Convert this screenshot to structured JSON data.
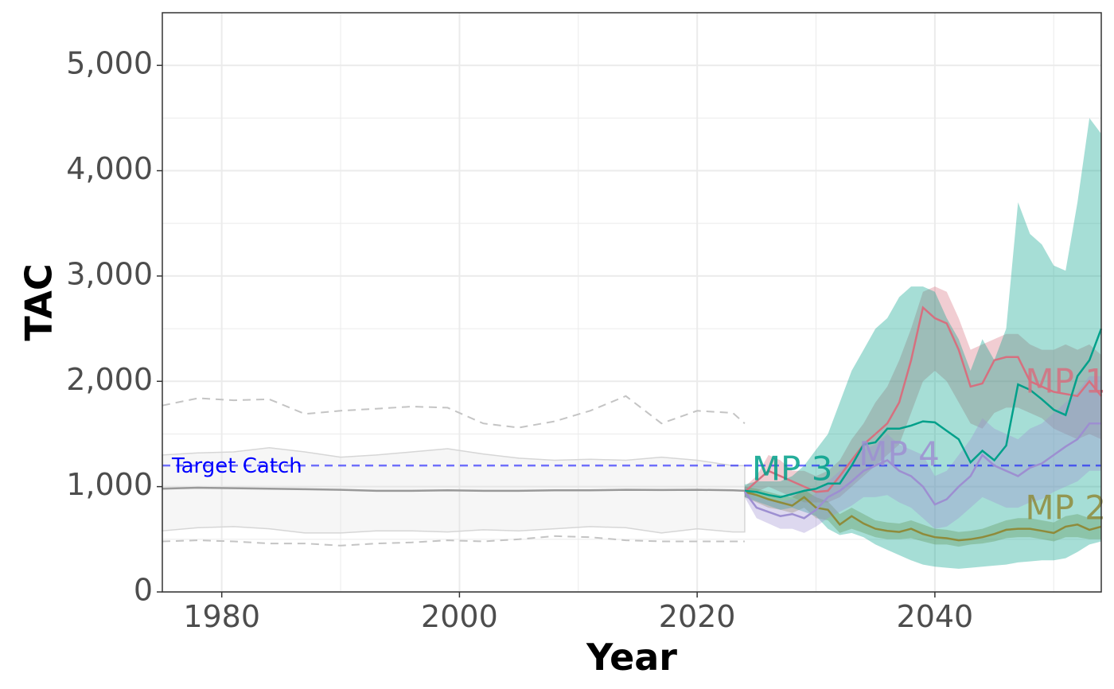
{
  "chart_data": {
    "type": "line",
    "xlabel": "Year",
    "ylabel": "TAC",
    "xlim": [
      1975,
      2054
    ],
    "ylim": [
      0,
      5500
    ],
    "x_ticks": [
      1980,
      2000,
      2020,
      2040
    ],
    "x_tick_labels": [
      "1980",
      "2000",
      "2020",
      "2040"
    ],
    "y_ticks": [
      0,
      1000,
      2000,
      3000,
      4000,
      5000
    ],
    "y_tick_labels": [
      "0",
      "1,000",
      "2,000",
      "3,000",
      "4,000",
      "5,000"
    ],
    "grid": true,
    "legend": "none",
    "reference_line": {
      "label": "Target Catch",
      "y": 1200,
      "color": "#0000ff"
    },
    "historical": {
      "color": "#999999",
      "x": [
        1975,
        1978,
        1981,
        1984,
        1987,
        1990,
        1993,
        1996,
        1999,
        2002,
        2005,
        2008,
        2011,
        2014,
        2017,
        2020,
        2023,
        2024
      ],
      "median": [
        980,
        990,
        985,
        980,
        975,
        970,
        960,
        960,
        965,
        960,
        960,
        965,
        965,
        970,
        968,
        970,
        965,
        960
      ],
      "band_upper": [
        1300,
        1320,
        1330,
        1370,
        1330,
        1280,
        1300,
        1330,
        1360,
        1310,
        1270,
        1250,
        1260,
        1250,
        1280,
        1250,
        1200,
        1200
      ],
      "band_lower": [
        580,
        610,
        620,
        600,
        560,
        560,
        580,
        580,
        570,
        590,
        580,
        600,
        620,
        610,
        560,
        600,
        570,
        570
      ],
      "dashed_upper": [
        1770,
        1840,
        1820,
        1830,
        1690,
        1720,
        1740,
        1760,
        1750,
        1600,
        1560,
        1620,
        1720,
        1860,
        1600,
        1720,
        1700,
        1600
      ],
      "dashed_lower": [
        480,
        490,
        480,
        460,
        460,
        440,
        460,
        470,
        490,
        480,
        500,
        530,
        520,
        490,
        480,
        480,
        480,
        480
      ]
    },
    "series": [
      {
        "name": "MP 1",
        "color": "#d6707f",
        "x": [
          2024,
          2025,
          2026,
          2027,
          2028,
          2029,
          2030,
          2031,
          2032,
          2033,
          2034,
          2035,
          2036,
          2037,
          2038,
          2039,
          2040,
          2041,
          2042,
          2043,
          2044,
          2045,
          2046,
          2047,
          2048,
          2049,
          2050,
          2051,
          2052,
          2053,
          2054
        ],
        "median": [
          950,
          1050,
          1150,
          1100,
          1050,
          1000,
          950,
          960,
          1100,
          1250,
          1400,
          1500,
          1600,
          1800,
          2200,
          2700,
          2600,
          2550,
          2300,
          1950,
          1980,
          2200,
          2230,
          2230,
          2000,
          1950,
          1900,
          1880,
          1860,
          2000,
          1860
        ],
        "lower": [
          900,
          950,
          1000,
          950,
          900,
          850,
          850,
          850,
          900,
          1000,
          1100,
          1200,
          1300,
          1400,
          1700,
          2000,
          2100,
          2000,
          1800,
          1600,
          1550,
          1700,
          1750,
          1750,
          1700,
          1650,
          1550,
          1500,
          1450,
          1500,
          1450
        ],
        "upper": [
          1000,
          1100,
          1300,
          1250,
          1150,
          1150,
          1100,
          1150,
          1250,
          1450,
          1600,
          1800,
          1950,
          2200,
          2500,
          2850,
          2900,
          2850,
          2600,
          2300,
          2350,
          2400,
          2450,
          2450,
          2350,
          2300,
          2300,
          2350,
          2300,
          2350,
          2250
        ]
      },
      {
        "name": "MP 2",
        "color": "#8f8b3a",
        "x": [
          2024,
          2025,
          2026,
          2027,
          2028,
          2029,
          2030,
          2031,
          2032,
          2033,
          2034,
          2035,
          2036,
          2037,
          2038,
          2039,
          2040,
          2041,
          2042,
          2043,
          2044,
          2045,
          2046,
          2047,
          2048,
          2049,
          2050,
          2051,
          2052,
          2053,
          2054
        ],
        "median": [
          950,
          920,
          880,
          850,
          820,
          900,
          800,
          780,
          640,
          720,
          650,
          600,
          580,
          570,
          600,
          550,
          520,
          510,
          490,
          500,
          520,
          550,
          590,
          600,
          600,
          580,
          560,
          620,
          640,
          590,
          620
        ],
        "lower": [
          900,
          850,
          800,
          780,
          750,
          800,
          700,
          680,
          560,
          600,
          560,
          520,
          500,
          500,
          510,
          480,
          450,
          450,
          430,
          450,
          460,
          480,
          510,
          520,
          520,
          500,
          480,
          520,
          520,
          500,
          500
        ],
        "upper": [
          1000,
          980,
          950,
          920,
          900,
          970,
          900,
          860,
          740,
          800,
          740,
          680,
          660,
          650,
          680,
          640,
          600,
          590,
          570,
          580,
          600,
          640,
          680,
          700,
          700,
          680,
          660,
          720,
          740,
          700,
          720
        ]
      },
      {
        "name": "MP 3",
        "color": "#00a08a",
        "x": [
          2024,
          2025,
          2026,
          2027,
          2028,
          2029,
          2030,
          2031,
          2032,
          2033,
          2034,
          2035,
          2036,
          2037,
          2038,
          2039,
          2040,
          2041,
          2042,
          2043,
          2044,
          2045,
          2046,
          2047,
          2048,
          2049,
          2050,
          2051,
          2052,
          2053,
          2054
        ],
        "median": [
          960,
          950,
          920,
          900,
          930,
          960,
          980,
          1030,
          1030,
          1200,
          1400,
          1420,
          1550,
          1550,
          1580,
          1620,
          1610,
          1530,
          1450,
          1230,
          1340,
          1250,
          1390,
          1970,
          1920,
          1830,
          1730,
          1680,
          2050,
          2200,
          2500
        ],
        "lower": [
          900,
          860,
          820,
          780,
          800,
          760,
          720,
          600,
          540,
          560,
          520,
          450,
          400,
          350,
          300,
          260,
          240,
          230,
          220,
          230,
          240,
          250,
          260,
          280,
          290,
          300,
          300,
          320,
          380,
          450,
          480
        ],
        "upper": [
          1020,
          1050,
          1050,
          1050,
          1100,
          1200,
          1350,
          1500,
          1800,
          2100,
          2300,
          2500,
          2600,
          2800,
          2900,
          2900,
          2850,
          2600,
          2400,
          2100,
          2400,
          2200,
          2500,
          3700,
          3400,
          3300,
          3100,
          3050,
          3700,
          4500,
          4350
        ]
      },
      {
        "name": "MP 4",
        "color": "#9d8fd1",
        "x": [
          2024,
          2025,
          2026,
          2027,
          2028,
          2029,
          2030,
          2031,
          2032,
          2033,
          2034,
          2035,
          2036,
          2037,
          2038,
          2039,
          2040,
          2041,
          2042,
          2043,
          2044,
          2045,
          2046,
          2047,
          2048,
          2049,
          2050,
          2051,
          2052,
          2053,
          2054
        ],
        "median": [
          950,
          800,
          760,
          720,
          740,
          700,
          780,
          900,
          960,
          1050,
          1150,
          1200,
          1250,
          1150,
          1100,
          1000,
          830,
          880,
          1000,
          1100,
          1300,
          1200,
          1150,
          1100,
          1180,
          1220,
          1300,
          1380,
          1450,
          1600,
          1600
        ],
        "lower": [
          900,
          700,
          650,
          600,
          600,
          560,
          620,
          700,
          760,
          820,
          900,
          900,
          920,
          850,
          800,
          700,
          600,
          620,
          700,
          800,
          900,
          850,
          800,
          800,
          850,
          880,
          950,
          1000,
          1050,
          1150,
          1150
        ],
        "upper": [
          1000,
          900,
          880,
          860,
          880,
          860,
          940,
          1050,
          1150,
          1250,
          1350,
          1400,
          1500,
          1400,
          1350,
          1300,
          1100,
          1150,
          1300,
          1450,
          1650,
          1550,
          1500,
          1450,
          1550,
          1600,
          1700,
          1800,
          1900,
          2050,
          2050
        ]
      }
    ],
    "series_labels": [
      {
        "text": "MP 1",
        "x": 2051,
        "y": 1980
      },
      {
        "text": "MP 2",
        "x": 2051,
        "y": 780
      },
      {
        "text": "MP 3",
        "x": 2028,
        "y": 1150
      },
      {
        "text": "MP 4",
        "x": 2037,
        "y": 1290
      }
    ]
  }
}
